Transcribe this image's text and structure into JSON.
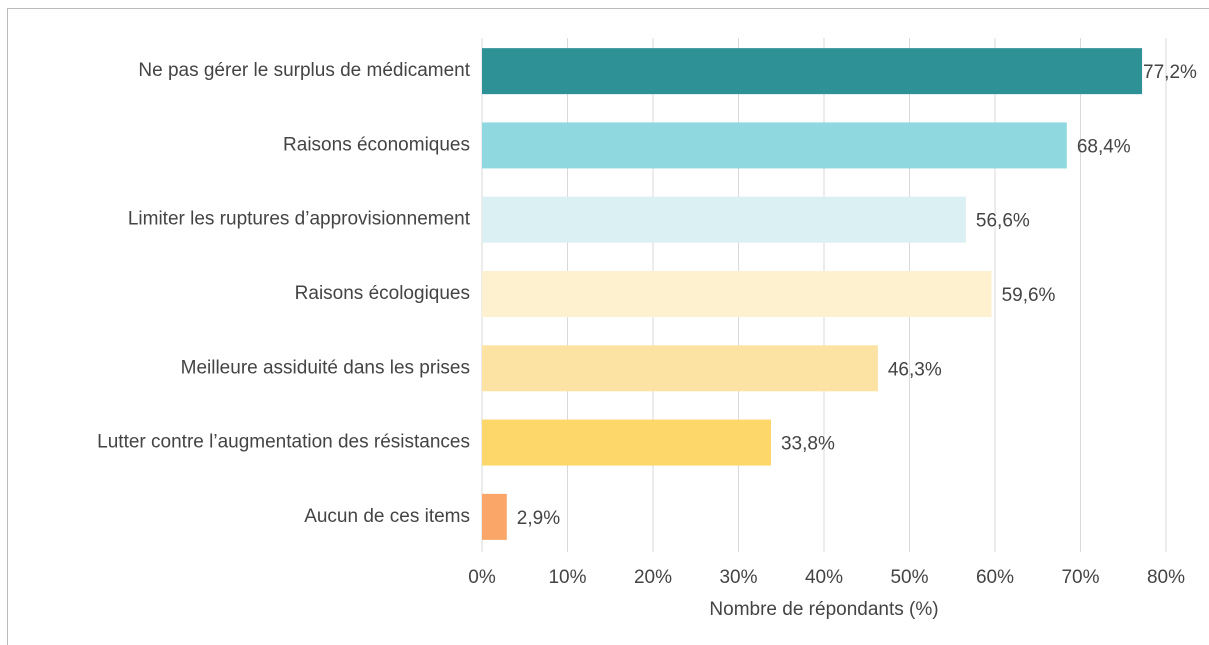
{
  "chart_data": {
    "type": "bar",
    "orientation": "horizontal",
    "categories": [
      "Ne pas gérer le surplus de médicament",
      "Raisons économiques",
      "Limiter les ruptures d’approvisionnement",
      "Raisons écologiques",
      "Meilleure assiduité dans les prises",
      "Lutter contre l’augmentation des résistances",
      "Aucun de ces items"
    ],
    "values": [
      77.2,
      68.4,
      56.6,
      59.6,
      46.3,
      33.8,
      2.9
    ],
    "value_labels": [
      "77,2%",
      "68,4%",
      "56,6%",
      "59,6%",
      "46,3%",
      "33,8%",
      "2,9%"
    ],
    "colors": [
      "#2e9196",
      "#8fd8df",
      "#dbf0f3",
      "#fdf1cf",
      "#fce3a3",
      "#fdd76a",
      "#f9a668"
    ],
    "xlabel": "Nombre de répondants (%)",
    "xlim": [
      0,
      80
    ],
    "xticks": [
      {
        "value": 0,
        "label": "0%"
      },
      {
        "value": 10,
        "label": "10%"
      },
      {
        "value": 20,
        "label": "20%"
      },
      {
        "value": 30,
        "label": "30%"
      },
      {
        "value": 40,
        "label": "40%"
      },
      {
        "value": 50,
        "label": "50%"
      },
      {
        "value": 60,
        "label": "60%"
      },
      {
        "value": 70,
        "label": "70%"
      },
      {
        "value": 80,
        "label": "80%"
      }
    ],
    "grid": true
  }
}
